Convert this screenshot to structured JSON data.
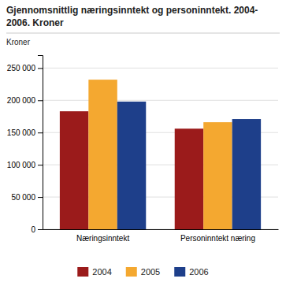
{
  "chart_data": {
    "type": "bar",
    "title": "Gjennomsnittlig næringsinntekt og personinntekt. 2004-",
    "subtitle": "2006. Kroner",
    "ylabel": "Kroner",
    "categories": [
      "Næringsinntekt",
      "Personinntekt næring"
    ],
    "series": [
      {
        "name": "2004",
        "color": "#9B1B1B",
        "values": [
          183000,
          156000
        ]
      },
      {
        "name": "2005",
        "color": "#F4A830",
        "values": [
          232000,
          166000
        ]
      },
      {
        "name": "2006",
        "color": "#1E3F8A",
        "values": [
          198000,
          171000
        ]
      }
    ],
    "ylim": [
      0,
      270000
    ],
    "yticks": [
      0,
      {
        "value": 50000,
        "label": "50 000"
      },
      {
        "value": 100000,
        "label": "100 000"
      },
      {
        "value": 150000,
        "label": "150 000"
      },
      {
        "value": 200000,
        "label": "200 000"
      },
      {
        "value": 250000,
        "label": "250 000"
      }
    ],
    "grid": true,
    "legend": "bottom"
  }
}
